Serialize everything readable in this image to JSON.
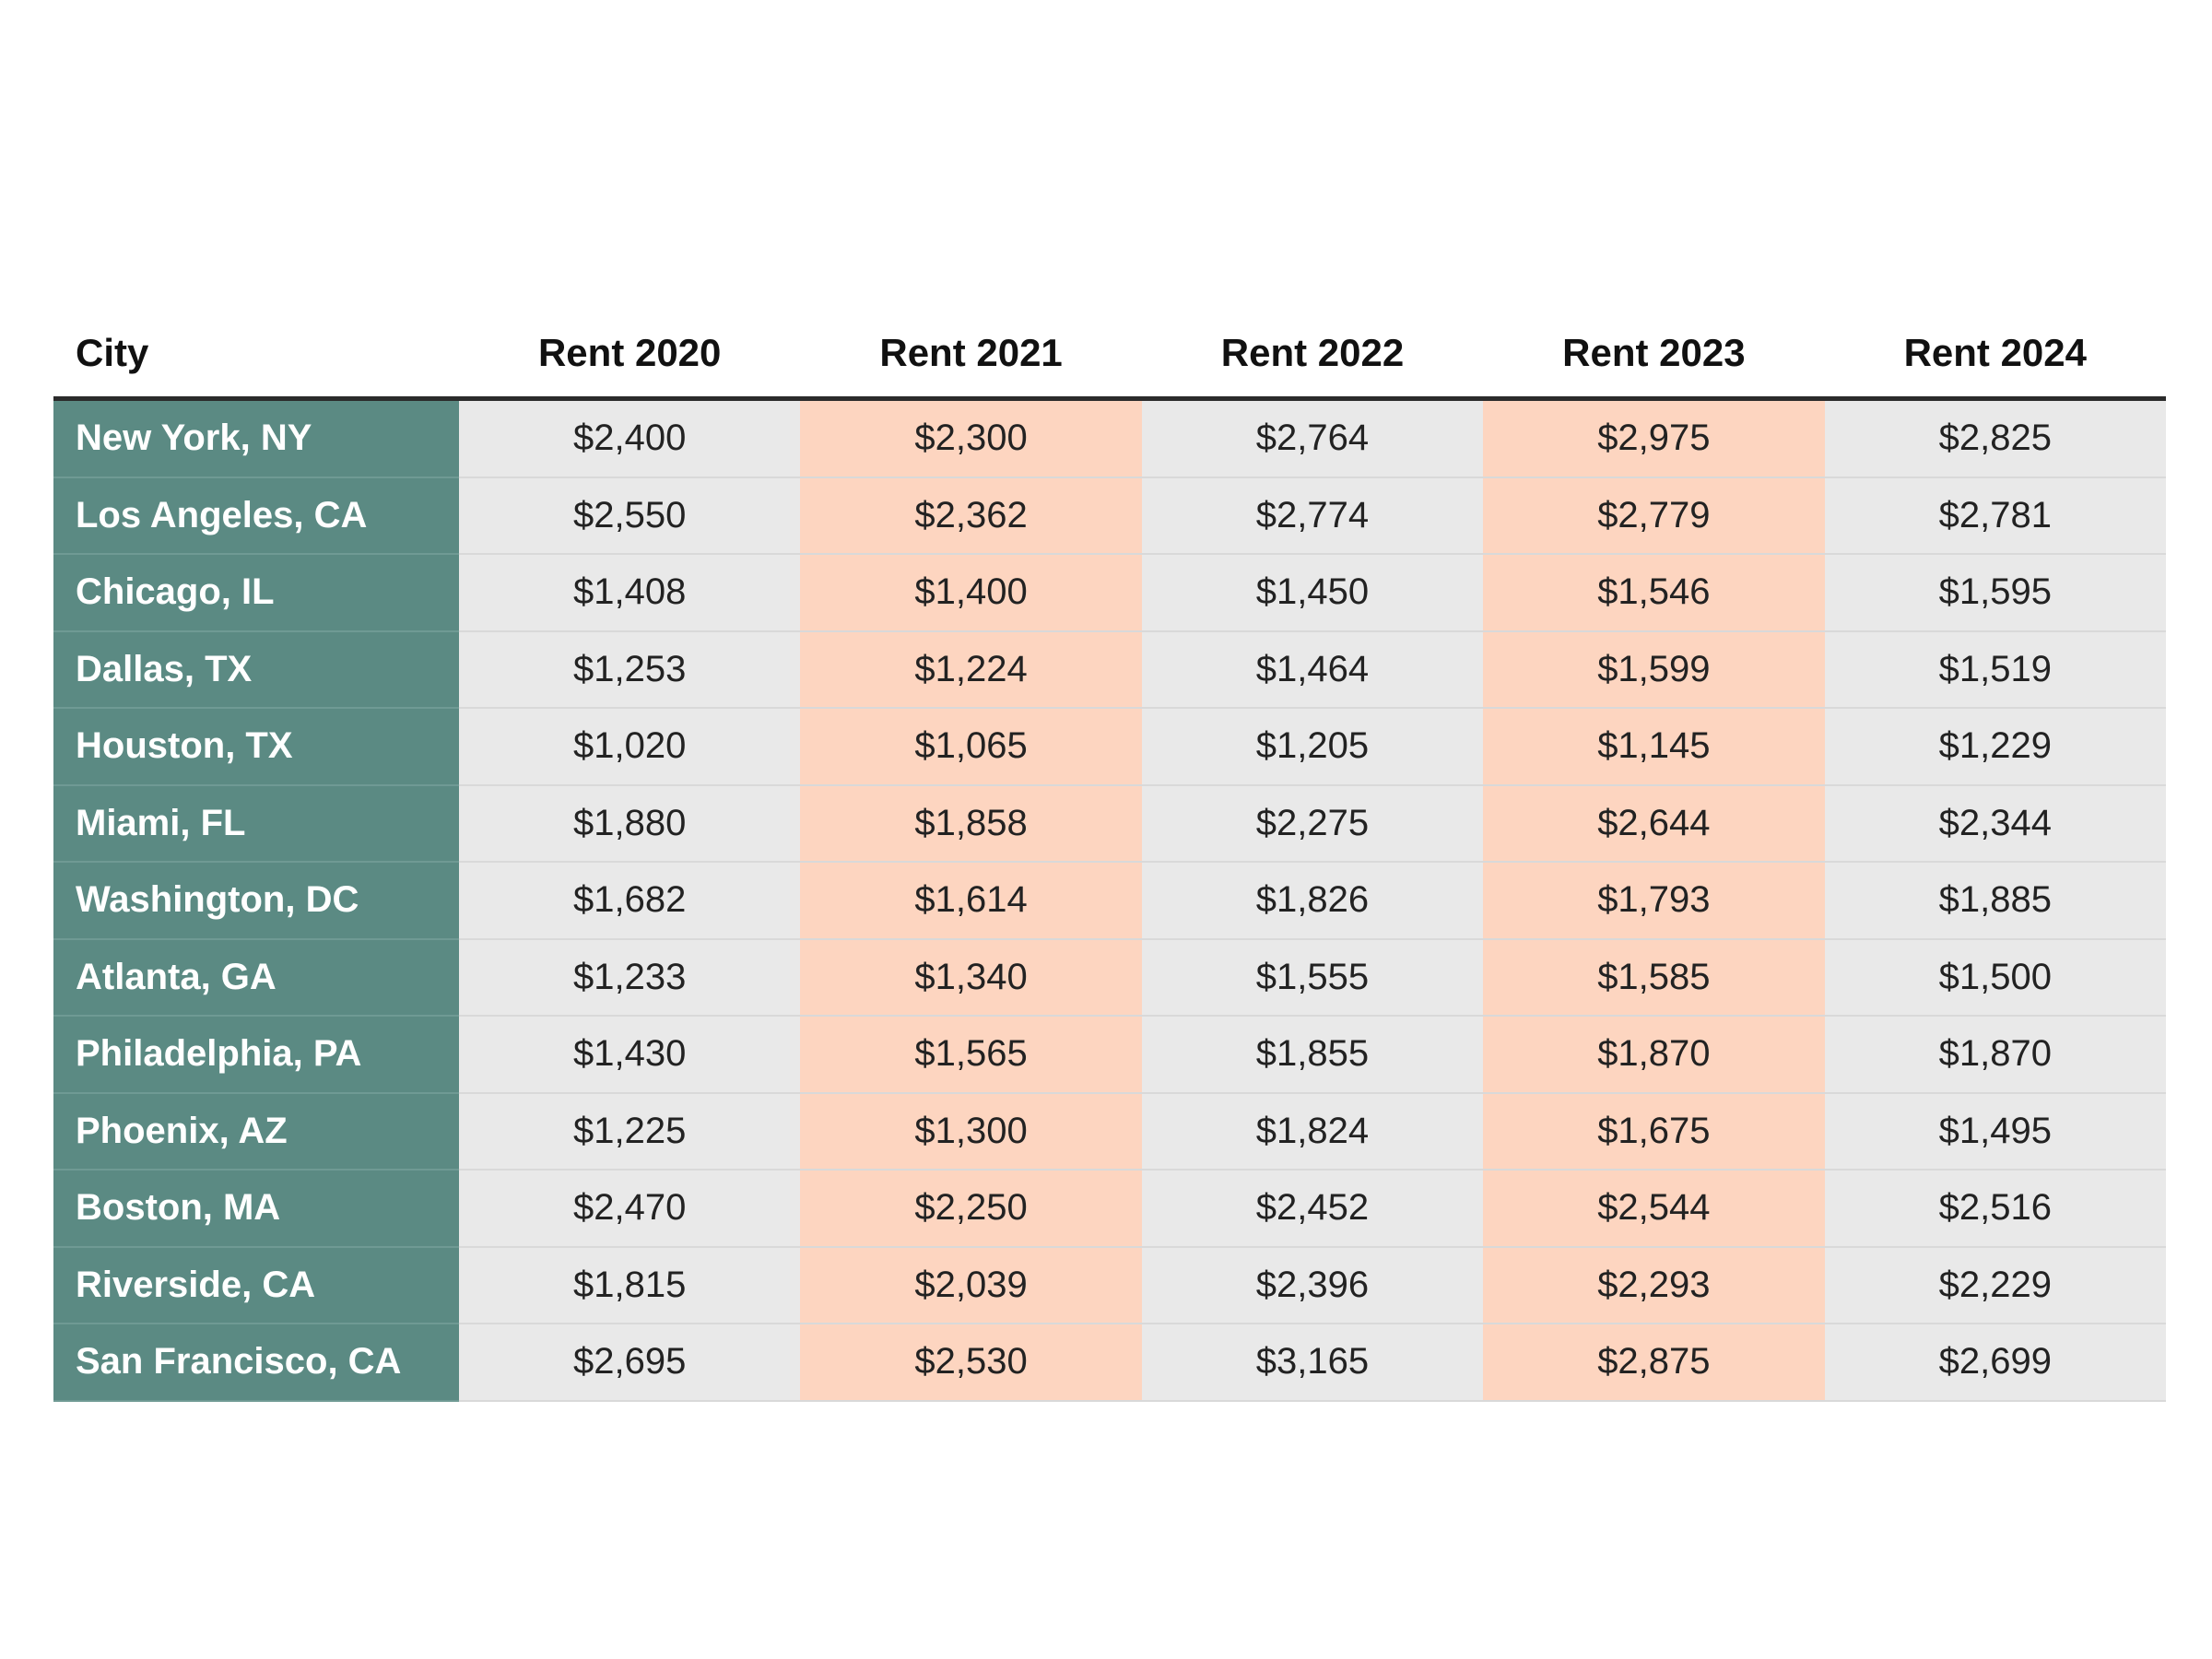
{
  "colors": {
    "city_column": "#5b8a83",
    "gray_column": "#e9e9e9",
    "peach_column": "#fdd5c0",
    "header_rule": "#2b2b2b"
  },
  "chart_data": {
    "type": "table",
    "columns": [
      "City",
      "Rent 2020",
      "Rent 2021",
      "Rent 2022",
      "Rent 2023",
      "Rent 2024"
    ],
    "column_styles": [
      "city",
      "gray",
      "peach",
      "gray",
      "peach",
      "gray"
    ],
    "rows": [
      [
        "New York, NY",
        "$2,400",
        "$2,300",
        "$2,764",
        "$2,975",
        "$2,825"
      ],
      [
        "Los Angeles, CA",
        "$2,550",
        "$2,362",
        "$2,774",
        "$2,779",
        "$2,781"
      ],
      [
        "Chicago, IL",
        "$1,408",
        "$1,400",
        "$1,450",
        "$1,546",
        "$1,595"
      ],
      [
        "Dallas, TX",
        "$1,253",
        "$1,224",
        "$1,464",
        "$1,599",
        "$1,519"
      ],
      [
        "Houston, TX",
        "$1,020",
        "$1,065",
        "$1,205",
        "$1,145",
        "$1,229"
      ],
      [
        "Miami, FL",
        "$1,880",
        "$1,858",
        "$2,275",
        "$2,644",
        "$2,344"
      ],
      [
        "Washington, DC",
        "$1,682",
        "$1,614",
        "$1,826",
        "$1,793",
        "$1,885"
      ],
      [
        "Atlanta, GA",
        "$1,233",
        "$1,340",
        "$1,555",
        "$1,585",
        "$1,500"
      ],
      [
        "Philadelphia, PA",
        "$1,430",
        "$1,565",
        "$1,855",
        "$1,870",
        "$1,870"
      ],
      [
        "Phoenix, AZ",
        "$1,225",
        "$1,300",
        "$1,824",
        "$1,675",
        "$1,495"
      ],
      [
        "Boston, MA",
        "$2,470",
        "$2,250",
        "$2,452",
        "$2,544",
        "$2,516"
      ],
      [
        "Riverside, CA",
        "$1,815",
        "$2,039",
        "$2,396",
        "$2,293",
        "$2,229"
      ],
      [
        "San Francisco, CA",
        "$2,695",
        "$2,530",
        "$3,165",
        "$2,875",
        "$2,699"
      ]
    ]
  }
}
